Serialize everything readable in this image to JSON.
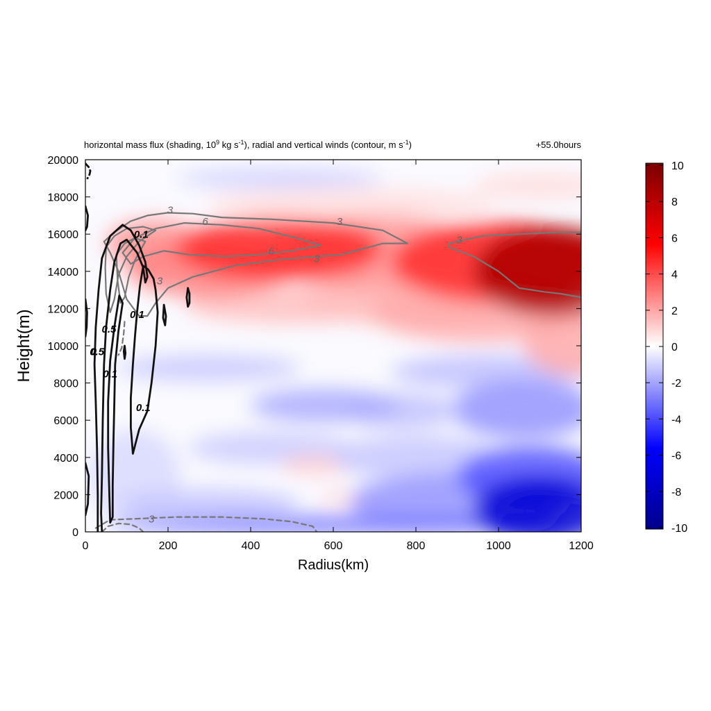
{
  "chart_data": {
    "type": "heatmap",
    "title_main": "horizontal mass flux (shading, 10",
    "title_exp1": "9",
    "title_mid": " kg s",
    "title_exp2": "-1",
    "title_mid2": "), radial and vertical winds (contour, m s",
    "title_exp3": "-1",
    "title_end": ")",
    "time_label": "+55.0hours",
    "xlabel": "Radius(km)",
    "ylabel": "Height(m)",
    "xlim": [
      0,
      1200
    ],
    "ylim": [
      0,
      20000
    ],
    "xticks": [
      0,
      200,
      400,
      600,
      800,
      1000,
      1200
    ],
    "yticks": [
      0,
      2000,
      4000,
      6000,
      8000,
      10000,
      12000,
      14000,
      16000,
      18000,
      20000
    ],
    "colorbar": {
      "range": [
        -10,
        10
      ],
      "ticks": [
        10,
        8,
        6,
        4,
        2,
        0,
        -2,
        -4,
        -6,
        -8,
        -10
      ],
      "colors": [
        "#00008b",
        "#0000ff",
        "#ffffff",
        "#ff0000",
        "#7a0000"
      ]
    },
    "shading_blobs": [
      {
        "x": 1130,
        "y": 14000,
        "rx": 190,
        "ry": 2400,
        "value": 8.5
      },
      {
        "x": 1000,
        "y": 14500,
        "rx": 260,
        "ry": 2200,
        "value": 5
      },
      {
        "x": 470,
        "y": 15200,
        "rx": 250,
        "ry": 1700,
        "value": 5
      },
      {
        "x": 700,
        "y": 15000,
        "rx": 260,
        "ry": 2000,
        "value": 2.5
      },
      {
        "x": 300,
        "y": 14200,
        "rx": 200,
        "ry": 1600,
        "value": 3
      },
      {
        "x": 170,
        "y": 15500,
        "rx": 120,
        "ry": 1300,
        "value": 2.5
      },
      {
        "x": 950,
        "y": 11800,
        "rx": 260,
        "ry": 1600,
        "value": 2
      },
      {
        "x": 500,
        "y": 12200,
        "rx": 260,
        "ry": 1000,
        "value": 1.5
      },
      {
        "x": 780,
        "y": 12500,
        "rx": 260,
        "ry": 1400,
        "value": 1.5
      },
      {
        "x": 1180,
        "y": 10200,
        "rx": 120,
        "ry": 1800,
        "value": 2
      },
      {
        "x": 1100,
        "y": 18600,
        "rx": 160,
        "ry": 700,
        "value": 0.8
      },
      {
        "x": 640,
        "y": 17600,
        "rx": 350,
        "ry": 900,
        "value": 0.7
      },
      {
        "x": 1100,
        "y": 1200,
        "rx": 160,
        "ry": 1800,
        "value": -7.5
      },
      {
        "x": 1080,
        "y": 3000,
        "rx": 180,
        "ry": 1600,
        "value": -4
      },
      {
        "x": 1060,
        "y": 6600,
        "rx": 170,
        "ry": 1600,
        "value": -2.5
      },
      {
        "x": 900,
        "y": 1600,
        "rx": 260,
        "ry": 1600,
        "value": -2.5
      },
      {
        "x": 980,
        "y": 8600,
        "rx": 240,
        "ry": 900,
        "value": -1.5
      },
      {
        "x": 600,
        "y": 400,
        "rx": 550,
        "ry": 450,
        "value": -3.5
      },
      {
        "x": 580,
        "y": 6800,
        "rx": 180,
        "ry": 900,
        "value": -2
      },
      {
        "x": 760,
        "y": 6500,
        "rx": 140,
        "ry": 900,
        "value": -1.5
      },
      {
        "x": 300,
        "y": 8800,
        "rx": 220,
        "ry": 700,
        "value": -1.3
      },
      {
        "x": 450,
        "y": 4500,
        "rx": 200,
        "ry": 900,
        "value": -1.2
      },
      {
        "x": 300,
        "y": 1500,
        "rx": 220,
        "ry": 800,
        "value": -1.4
      },
      {
        "x": 800,
        "y": 4000,
        "rx": 200,
        "ry": 1200,
        "value": -1.3
      },
      {
        "x": 470,
        "y": 19000,
        "rx": 250,
        "ry": 500,
        "value": -1.2
      },
      {
        "x": 120,
        "y": 3000,
        "rx": 110,
        "ry": 2500,
        "value": -0.9
      },
      {
        "x": 560,
        "y": 3600,
        "rx": 90,
        "ry": 500,
        "value": 1.2
      },
      {
        "x": 640,
        "y": 1800,
        "rx": 80,
        "ry": 300,
        "value": 1.1
      }
    ],
    "contour_labels": [
      {
        "text": "3",
        "x": 205,
        "y": 17100,
        "color": "#666666"
      },
      {
        "text": "6",
        "x": 290,
        "y": 16500,
        "color": "#666666"
      },
      {
        "text": "3",
        "x": 615,
        "y": 16500,
        "color": "#666666"
      },
      {
        "text": "6",
        "x": 450,
        "y": 14900,
        "color": "#666666"
      },
      {
        "text": "3",
        "x": 560,
        "y": 14500,
        "color": "#666666"
      },
      {
        "text": "3",
        "x": 905,
        "y": 15500,
        "color": "#666666"
      },
      {
        "text": "3",
        "x": 180,
        "y": 13300,
        "color": "#666666"
      },
      {
        "text": "3",
        "x": 160,
        "y": 500,
        "color": "#666666"
      },
      {
        "text": "0.1",
        "x": 135,
        "y": 15800,
        "color": "#000000"
      },
      {
        "text": "0.1",
        "x": 125,
        "y": 11500,
        "color": "#000000"
      },
      {
        "text": "0.1",
        "x": 140,
        "y": 6500,
        "color": "#000000"
      },
      {
        "text": "0.5",
        "x": 57,
        "y": 10700,
        "color": "#000000"
      },
      {
        "text": "0.1",
        "x": 60,
        "y": 8300,
        "color": "#000000"
      },
      {
        "text": "0",
        "x": 20,
        "y": 9500,
        "color": "#000000"
      },
      {
        "text": "0.5",
        "x": 28,
        "y": 9500,
        "color": "#000000"
      }
    ],
    "contours": [
      {
        "name": "grey-3-upper",
        "color": "#777777",
        "dash": false,
        "width": 2.2,
        "points": [
          [
            45,
            15600
          ],
          [
            70,
            16100
          ],
          [
            110,
            16700
          ],
          [
            150,
            17000
          ],
          [
            200,
            17150
          ],
          [
            260,
            17100
          ],
          [
            330,
            16900
          ],
          [
            450,
            16800
          ],
          [
            600,
            16600
          ],
          [
            720,
            16200
          ],
          [
            780,
            15500
          ],
          [
            720,
            15500
          ],
          [
            620,
            14900
          ],
          [
            560,
            14800
          ],
          [
            460,
            14600
          ],
          [
            360,
            14300
          ],
          [
            260,
            13700
          ],
          [
            200,
            13100
          ],
          [
            170,
            12300
          ],
          [
            150,
            11600
          ],
          [
            130,
            11600
          ],
          [
            100,
            12500
          ],
          [
            80,
            14000
          ],
          [
            60,
            15000
          ],
          [
            45,
            15600
          ]
        ]
      },
      {
        "name": "grey-6",
        "color": "#777777",
        "dash": false,
        "width": 2.2,
        "points": [
          [
            90,
            15000
          ],
          [
            120,
            15800
          ],
          [
            170,
            16300
          ],
          [
            240,
            16600
          ],
          [
            330,
            16500
          ],
          [
            420,
            16300
          ],
          [
            510,
            15800
          ],
          [
            570,
            15400
          ],
          [
            500,
            15100
          ],
          [
            420,
            14900
          ],
          [
            340,
            14800
          ],
          [
            250,
            14900
          ],
          [
            190,
            15100
          ],
          [
            140,
            14800
          ],
          [
            110,
            14400
          ],
          [
            90,
            15000
          ]
        ]
      },
      {
        "name": "grey-3-right",
        "color": "#777777",
        "dash": false,
        "width": 2.2,
        "points": [
          [
            1200,
            16100
          ],
          [
            1150,
            16100
          ],
          [
            1050,
            16000
          ],
          [
            960,
            15900
          ],
          [
            880,
            15500
          ],
          [
            880,
            15300
          ],
          [
            940,
            14800
          ],
          [
            1000,
            14000
          ],
          [
            1050,
            13100
          ],
          [
            1110,
            12900
          ],
          [
            1150,
            12800
          ],
          [
            1200,
            12600
          ]
        ]
      },
      {
        "name": "grey-inner-1",
        "color": "#777777",
        "dash": false,
        "width": 2.2,
        "points": [
          [
            50,
            15300
          ],
          [
            70,
            15900
          ],
          [
            100,
            16300
          ],
          [
            140,
            16400
          ],
          [
            170,
            16200
          ],
          [
            130,
            15600
          ],
          [
            100,
            14800
          ],
          [
            80,
            13800
          ],
          [
            70,
            12500
          ],
          [
            60,
            11800
          ],
          [
            50,
            12800
          ],
          [
            48,
            14200
          ],
          [
            50,
            15300
          ]
        ]
      },
      {
        "name": "grey-inner-2",
        "color": "#777777",
        "dash": false,
        "width": 2.2,
        "points": [
          [
            75,
            14900
          ],
          [
            95,
            15500
          ],
          [
            120,
            15800
          ],
          [
            145,
            15600
          ],
          [
            120,
            14600
          ],
          [
            105,
            13700
          ],
          [
            95,
            12600
          ],
          [
            85,
            12300
          ],
          [
            78,
            13500
          ],
          [
            75,
            14900
          ]
        ]
      },
      {
        "name": "grey-dashed-bottom",
        "color": "#777777",
        "dash": true,
        "width": 2.2,
        "points": [
          [
            25,
            200
          ],
          [
            60,
            650
          ],
          [
            120,
            700
          ],
          [
            220,
            800
          ],
          [
            330,
            800
          ],
          [
            430,
            700
          ],
          [
            500,
            550
          ],
          [
            550,
            300
          ],
          [
            560,
            0
          ]
        ]
      },
      {
        "name": "grey-dashed-bottom-2",
        "color": "#777777",
        "dash": true,
        "width": 2.2,
        "points": [
          [
            40,
            0
          ],
          [
            55,
            300
          ],
          [
            80,
            450
          ],
          [
            110,
            400
          ],
          [
            130,
            200
          ],
          [
            140,
            0
          ]
        ]
      },
      {
        "name": "grey-dashed-mid",
        "color": "#777777",
        "dash": true,
        "width": 2.2,
        "points": [
          [
            95,
            11300
          ],
          [
            93,
            10700
          ],
          [
            88,
            9900
          ],
          [
            80,
            9500
          ]
        ]
      },
      {
        "name": "black-0.1-outer",
        "color": "#111111",
        "dash": false,
        "width": 2.8,
        "points": [
          [
            30,
            0
          ],
          [
            30,
            2000
          ],
          [
            28,
            4500
          ],
          [
            25,
            7000
          ],
          [
            22,
            9000
          ],
          [
            25,
            11000
          ],
          [
            32,
            13000
          ],
          [
            40,
            14700
          ],
          [
            60,
            15900
          ],
          [
            90,
            16500
          ],
          [
            110,
            16200
          ],
          [
            130,
            15400
          ],
          [
            145,
            14500
          ],
          [
            150,
            13700
          ],
          [
            145,
            13400
          ],
          [
            140,
            14200
          ],
          [
            125,
            15000
          ],
          [
            100,
            15700
          ],
          [
            85,
            15500
          ],
          [
            70,
            14500
          ],
          [
            60,
            13000
          ],
          [
            50,
            11000
          ],
          [
            45,
            9000
          ],
          [
            42,
            6000
          ],
          [
            40,
            3000
          ],
          [
            38,
            1000
          ],
          [
            40,
            0
          ]
        ]
      },
      {
        "name": "black-0.1-inner",
        "color": "#111111",
        "dash": false,
        "width": 2.8,
        "points": [
          [
            170,
            13000
          ],
          [
            175,
            11800
          ],
          [
            170,
            10000
          ],
          [
            160,
            8000
          ],
          [
            150,
            6500
          ],
          [
            130,
            5500
          ],
          [
            115,
            4200
          ],
          [
            110,
            5600
          ],
          [
            110,
            7200
          ],
          [
            115,
            9000
          ],
          [
            120,
            10500
          ],
          [
            125,
            11800
          ],
          [
            132,
            13200
          ],
          [
            140,
            14300
          ],
          [
            152,
            14100
          ],
          [
            165,
            13600
          ],
          [
            170,
            13000
          ]
        ]
      },
      {
        "name": "black-0.1-narrow",
        "color": "#111111",
        "dash": false,
        "width": 2.8,
        "points": [
          [
            60,
            500
          ],
          [
            58,
            2000
          ],
          [
            55,
            4500
          ],
          [
            55,
            7000
          ],
          [
            60,
            9200
          ],
          [
            70,
            11000
          ],
          [
            82,
            12700
          ],
          [
            90,
            12300
          ],
          [
            80,
            10800
          ],
          [
            72,
            9000
          ],
          [
            70,
            7000
          ],
          [
            68,
            5000
          ],
          [
            66,
            2500
          ],
          [
            66,
            800
          ],
          [
            60,
            500
          ]
        ]
      },
      {
        "name": "black-small-1",
        "color": "#111111",
        "dash": false,
        "width": 2.8,
        "points": [
          [
            248,
            13100
          ],
          [
            252,
            12800
          ],
          [
            252,
            12300
          ],
          [
            248,
            12100
          ],
          [
            245,
            12600
          ],
          [
            248,
            13100
          ]
        ]
      },
      {
        "name": "black-small-2",
        "color": "#111111",
        "dash": false,
        "width": 2.8,
        "points": [
          [
            190,
            12200
          ],
          [
            195,
            11600
          ],
          [
            193,
            11100
          ],
          [
            188,
            11500
          ],
          [
            190,
            12200
          ]
        ]
      },
      {
        "name": "black-small-3",
        "color": "#111111",
        "dash": false,
        "width": 2.8,
        "points": [
          [
            95,
            10000
          ],
          [
            97,
            9600
          ],
          [
            95,
            9300
          ],
          [
            93,
            9700
          ],
          [
            95,
            10000
          ]
        ]
      },
      {
        "name": "black-left-edge-1",
        "color": "#111111",
        "dash": false,
        "width": 2.8,
        "points": [
          [
            0,
            17500
          ],
          [
            6,
            17000
          ],
          [
            4,
            16400
          ],
          [
            0,
            16200
          ]
        ]
      },
      {
        "name": "black-left-edge-2",
        "color": "#111111",
        "dash": false,
        "width": 2.8,
        "points": [
          [
            0,
            12500
          ],
          [
            4,
            11800
          ],
          [
            3,
            11000
          ],
          [
            0,
            10500
          ]
        ]
      },
      {
        "name": "black-left-edge-3",
        "color": "#111111",
        "dash": false,
        "width": 2.8,
        "points": [
          [
            0,
            3700
          ],
          [
            8,
            3000
          ],
          [
            6,
            1500
          ],
          [
            0,
            900
          ]
        ]
      },
      {
        "name": "black-dashed-top",
        "color": "#111111",
        "dash": true,
        "width": 2.8,
        "points": [
          [
            0,
            19800
          ],
          [
            8,
            19600
          ],
          [
            12,
            19400
          ],
          [
            10,
            19200
          ],
          [
            5,
            19000
          ]
        ]
      }
    ]
  }
}
